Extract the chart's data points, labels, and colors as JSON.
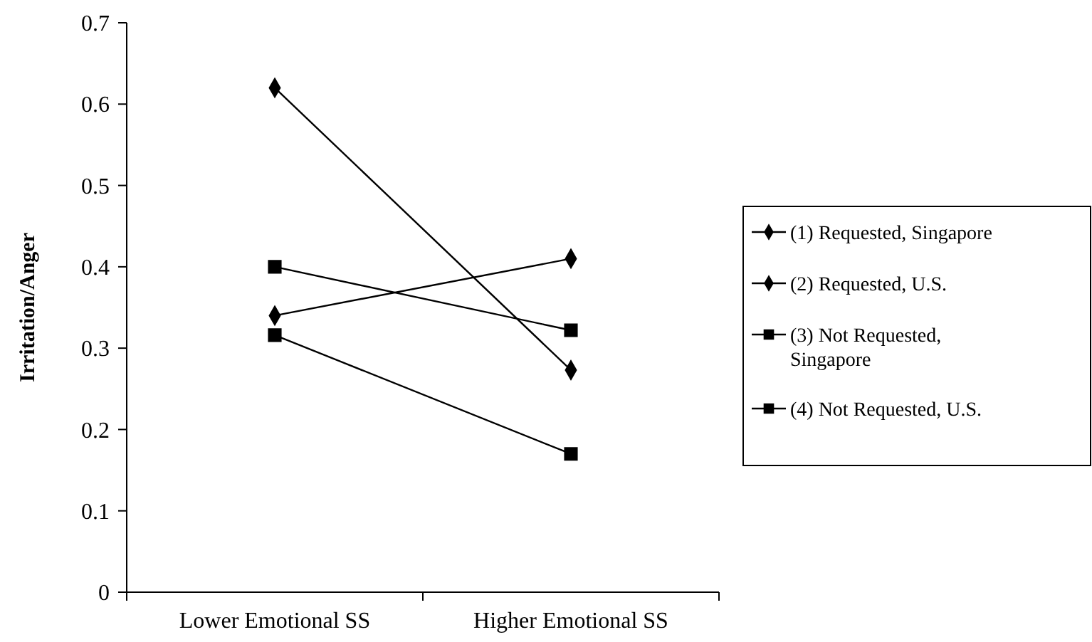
{
  "chart_data": {
    "type": "line",
    "ylabel": "Irritation/Anger",
    "categories": [
      "Lower Emotional SS",
      "Higher Emotional SS"
    ],
    "ylim": [
      0,
      0.7
    ],
    "yticks": [
      {
        "value": 0,
        "label": "0"
      },
      0.1,
      0.2,
      0.3,
      0.4,
      0.5,
      0.6,
      0.7
    ],
    "grid": false,
    "legend": "right",
    "series": [
      {
        "name": "(1) Requested, Singapore",
        "color": "#000000",
        "marker": "diamond",
        "values": [
          0.62,
          0.273
        ]
      },
      {
        "name": "(2) Requested, U.S.",
        "color": "#000000",
        "marker": "diamond",
        "values": [
          0.34,
          0.41
        ]
      },
      {
        "name": "(3) Not Requested, Singapore",
        "color": "#000000",
        "marker": "square",
        "values": [
          0.4,
          0.322
        ]
      },
      {
        "name": "(4) Not Requested, U.S.",
        "color": "#000000",
        "marker": "square",
        "values": [
          0.316,
          0.17
        ]
      }
    ]
  }
}
